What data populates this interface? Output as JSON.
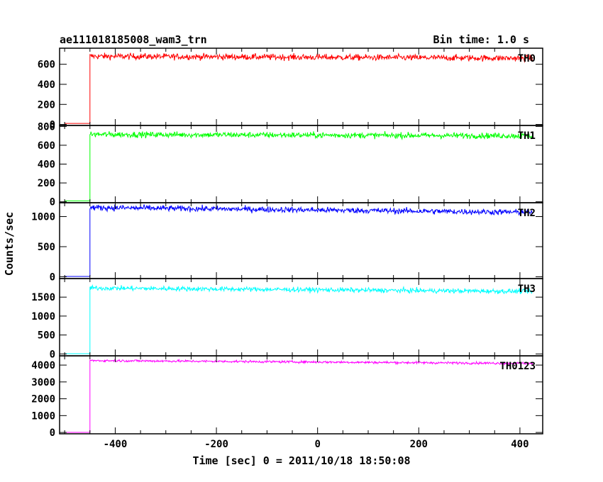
{
  "chart_data": {
    "type": "line",
    "title": "ae111018185008_wam3_trn",
    "subtitle": "Bin time: 1.0 s",
    "xlabel": "Time [sec] 0 = 2011/10/18 18:50:08",
    "ylabel": "Counts/sec",
    "xlim": [
      -510,
      445
    ],
    "xticks": [
      -400,
      -200,
      0,
      200,
      400
    ],
    "grid": false,
    "x_start": -500,
    "x_end": 425,
    "onset_x": -450,
    "series": [
      {
        "name": "TH0",
        "color": "#ff0000",
        "ylim": [
          -10,
          760
        ],
        "yticks": [
          0,
          200,
          400,
          600
        ],
        "pre_level": 10,
        "level_start": 680,
        "level_end": 660,
        "noise": 22
      },
      {
        "name": "TH1",
        "color": "#00ff00",
        "ylim": [
          -10,
          810
        ],
        "yticks": [
          0,
          200,
          400,
          600,
          800
        ],
        "pre_level": 10,
        "level_start": 715,
        "level_end": 700,
        "noise": 22
      },
      {
        "name": "TH2",
        "color": "#0000ff",
        "ylim": [
          -30,
          1230
        ],
        "yticks": [
          0,
          500,
          1000
        ],
        "pre_level": 5,
        "level_start": 1150,
        "level_end": 1070,
        "noise": 35
      },
      {
        "name": "TH3",
        "color": "#00ffff",
        "ylim": [
          -50,
          1990
        ],
        "yticks": [
          0,
          500,
          1000,
          1500
        ],
        "pre_level": 5,
        "level_start": 1740,
        "level_end": 1650,
        "noise": 45
      },
      {
        "name": "TH0123",
        "color": "#ff00ff",
        "ylim": [
          -80,
          4550
        ],
        "yticks": [
          0,
          1000,
          2000,
          3000,
          4000
        ],
        "pre_level": 5,
        "level_start": 4270,
        "level_end": 4100,
        "noise": 50
      }
    ]
  }
}
